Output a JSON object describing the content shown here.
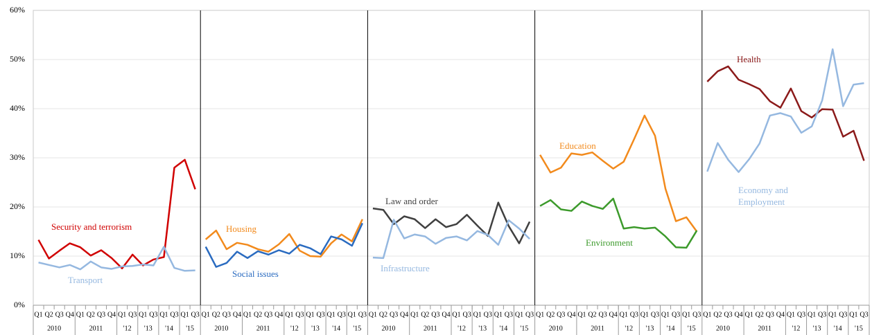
{
  "chart_data": {
    "type": "line",
    "ylim": [
      0,
      60
    ],
    "yticks": [
      {
        "value": 0,
        "label": "0%"
      },
      {
        "value": 10,
        "label": "10%"
      },
      {
        "value": 20,
        "label": "20%"
      },
      {
        "value": 30,
        "label": "30%"
      },
      {
        "value": 40,
        "label": "40%"
      },
      {
        "value": 50,
        "label": "50%"
      },
      {
        "value": 60,
        "label": "60%"
      }
    ],
    "grid": true,
    "categories": [
      "Q1",
      "Q2",
      "Q3",
      "Q4",
      "Q1",
      "Q2",
      "Q3",
      "Q4",
      "Q1",
      "Q3",
      "Q1",
      "Q3",
      "Q1",
      "Q3",
      "Q1",
      "Q3"
    ],
    "years": [
      "2010",
      null,
      null,
      null,
      "2011",
      null,
      null,
      null,
      "'12",
      null,
      "'13",
      null,
      "'14",
      null,
      "'15",
      null
    ],
    "panels": [
      {
        "series": [
          {
            "name": "Security and terrorism",
            "color": "#d00000",
            "values": [
              13.3,
              9.5,
              11.1,
              12.6,
              11.8,
              10.1,
              11.2,
              9.6,
              7.5,
              10.3,
              8.1,
              9.3,
              9.8,
              28.0,
              29.6,
              23.6
            ]
          },
          {
            "name": "Transport",
            "color": "#95b8e0",
            "values": [
              8.7,
              8.2,
              7.7,
              8.2,
              7.3,
              8.9,
              7.7,
              7.4,
              7.9,
              8.0,
              8.3,
              8.1,
              11.9,
              7.6,
              7.0,
              7.1
            ]
          }
        ]
      },
      {
        "series": [
          {
            "name": "Housing",
            "color": "#f28a1c",
            "values": [
              13.4,
              15.2,
              11.4,
              12.7,
              12.3,
              11.4,
              10.9,
              12.4,
              14.5,
              11.1,
              10.0,
              9.9,
              12.6,
              14.4,
              13.0,
              17.5
            ]
          },
          {
            "name": "Social issues",
            "color": "#2a6bc0",
            "values": [
              11.9,
              7.8,
              8.6,
              10.9,
              9.6,
              11.0,
              10.3,
              11.2,
              10.5,
              12.3,
              11.6,
              10.4,
              14.0,
              13.4,
              12.1,
              16.7
            ]
          }
        ]
      },
      {
        "series": [
          {
            "name": "Law and order",
            "color": "#404040",
            "values": [
              19.7,
              19.4,
              16.5,
              18.1,
              17.5,
              15.7,
              17.5,
              15.9,
              16.5,
              18.4,
              16.2,
              14.1,
              20.9,
              16.1,
              12.6,
              17.0
            ]
          },
          {
            "name": "Infrastructure",
            "color": "#95b8e0",
            "values": [
              9.7,
              9.6,
              17.4,
              13.6,
              14.4,
              14.0,
              12.5,
              13.7,
              14.0,
              13.2,
              15.1,
              14.3,
              12.3,
              17.3,
              15.6,
              13.5
            ]
          }
        ]
      },
      {
        "series": [
          {
            "name": "Education",
            "color": "#f28a1c",
            "values": [
              30.6,
              27.0,
              28.0,
              30.9,
              30.6,
              31.1,
              29.4,
              27.8,
              29.2,
              33.8,
              38.6,
              34.5,
              23.7,
              17.1,
              17.9,
              15.0
            ]
          },
          {
            "name": "Environment",
            "color": "#3c9a2b",
            "values": [
              20.2,
              21.4,
              19.5,
              19.2,
              21.1,
              20.2,
              19.6,
              21.7,
              15.6,
              15.9,
              15.6,
              15.8,
              14.0,
              11.8,
              11.7,
              15.2
            ]
          }
        ]
      },
      {
        "series": [
          {
            "name": "Health",
            "color": "#8b1a1a",
            "values": [
              45.5,
              47.6,
              48.6,
              45.9,
              45.0,
              44.0,
              41.5,
              40.2,
              44.1,
              39.5,
              38.2,
              39.9,
              39.8,
              34.3,
              35.5,
              29.4
            ]
          },
          {
            "name": "Economy and Employment",
            "color": "#95b8e0",
            "values": [
              27.2,
              33.0,
              29.6,
              27.1,
              29.7,
              32.9,
              38.6,
              39.1,
              38.4,
              35.1,
              36.4,
              41.7,
              52.1,
              40.5,
              44.9,
              45.2
            ]
          }
        ]
      }
    ]
  }
}
